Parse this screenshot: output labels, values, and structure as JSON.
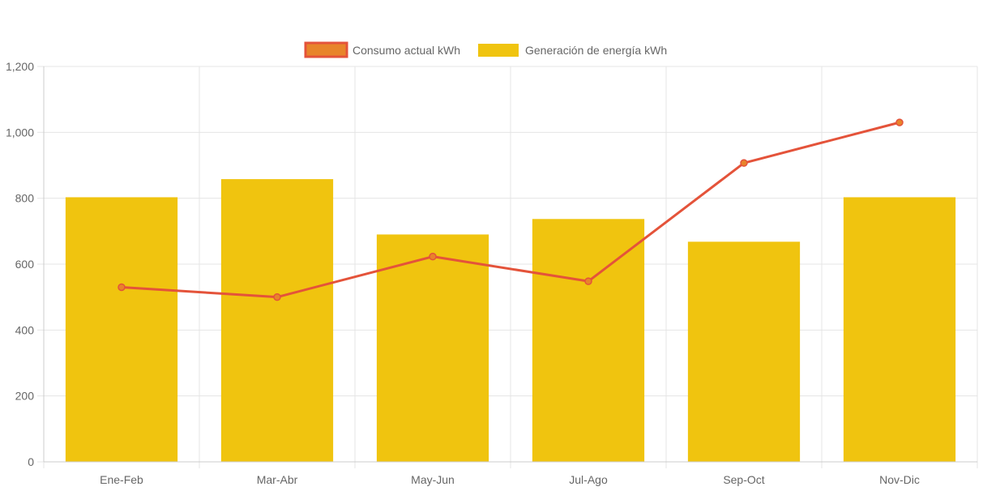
{
  "chart_data": {
    "type": "bar",
    "categories": [
      "Ene-Feb",
      "Mar-Abr",
      "May-Jun",
      "Jul-Ago",
      "Sep-Oct",
      "Nov-Dic"
    ],
    "y_ticks": [
      "0",
      "200",
      "400",
      "600",
      "800",
      "1,000",
      "1,200"
    ],
    "ylim": [
      0,
      1200
    ],
    "grid": true,
    "legend_position": "top-center",
    "series": [
      {
        "name": "Consumo actual kWh",
        "type": "line",
        "values": [
          530,
          500,
          623,
          548,
          907,
          1030
        ],
        "color": "#e4533a",
        "marker_fill": "#e8842a"
      },
      {
        "name": "Generación de energía kWh",
        "type": "bar",
        "values": [
          803,
          858,
          690,
          737,
          668,
          803
        ],
        "color": "#f0c40f"
      }
    ]
  }
}
